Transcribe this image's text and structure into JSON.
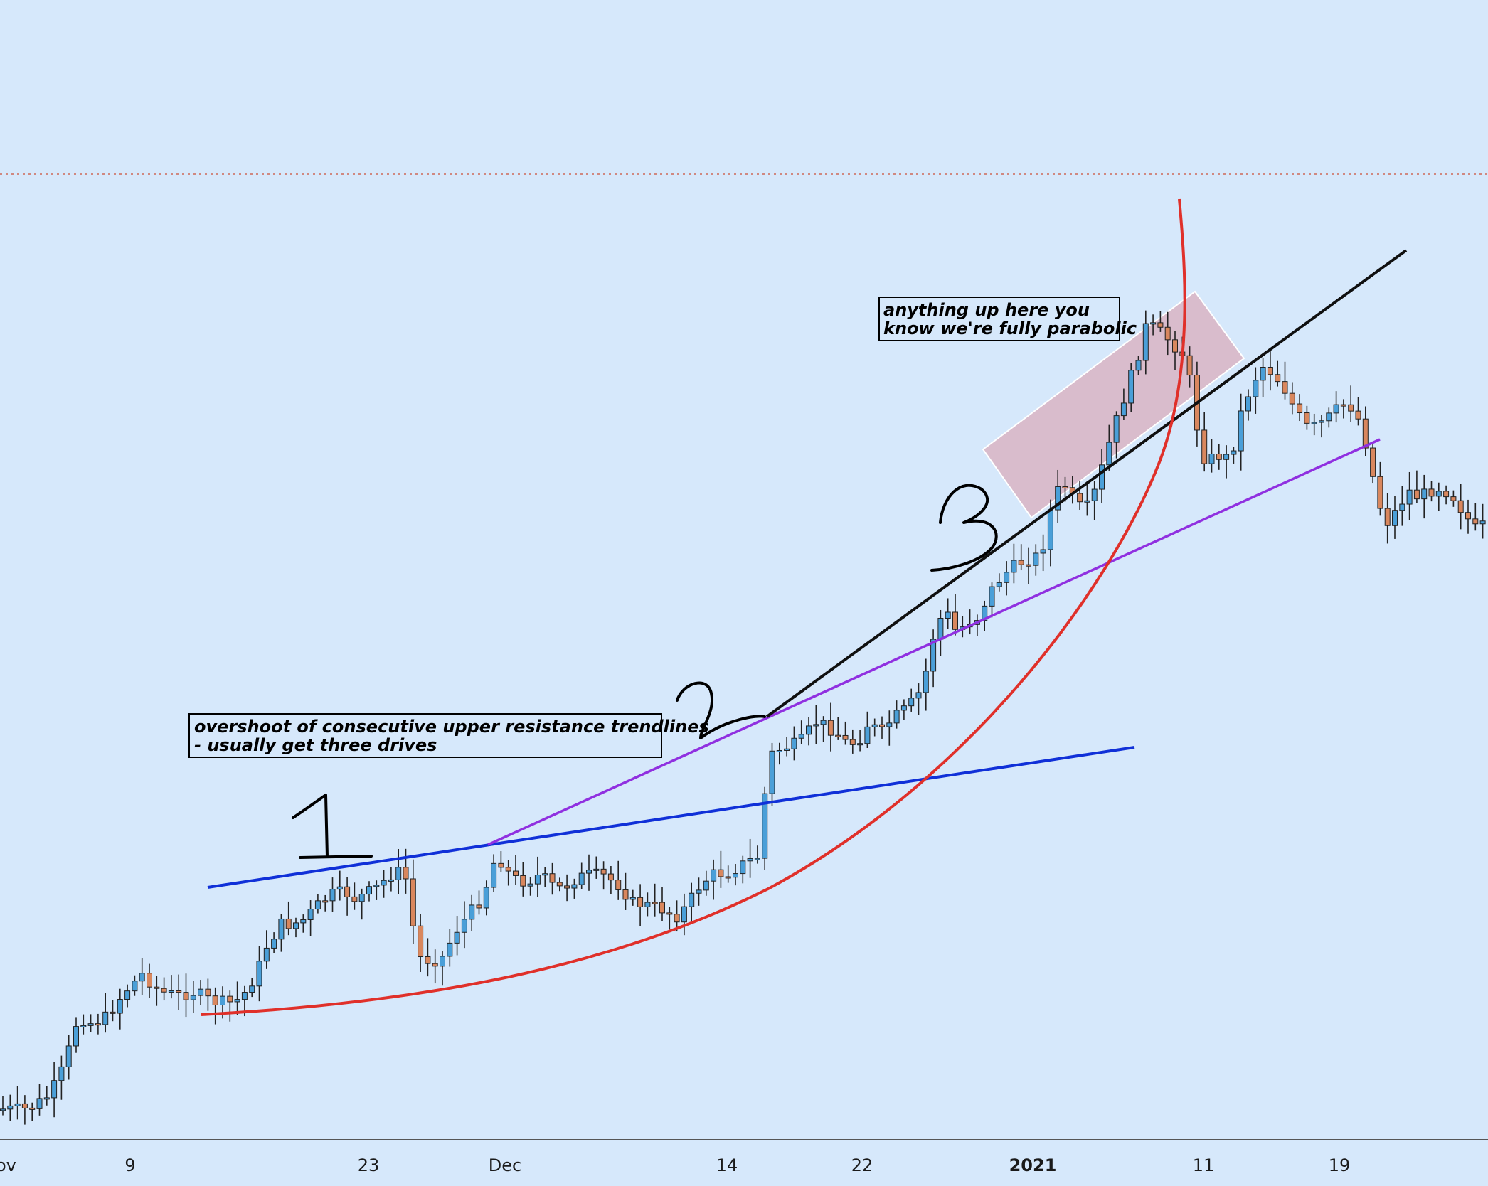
{
  "colors": {
    "background": "#d6e8fb",
    "bull": "#4a9fd8",
    "bear": "#d9875e",
    "wick": "#222222",
    "blue_trendline": "#1030d8",
    "purple_trendline": "#9030e0",
    "black_trendline": "#101010",
    "red_curve": "#e0302a",
    "zone_fill": "#d9b4c3",
    "dotted_line": "#d08880"
  },
  "annotations": {
    "note_1_line_1": "overshoot of consecutive upper resistance trendlines",
    "note_1_line_2": "- usually get three drives",
    "note_2_line_1": "anything up here you",
    "note_2_line_2": "know we're fully parabolic",
    "drive_1": "1",
    "drive_2": "2",
    "drive_3": "3"
  },
  "chart_data": {
    "type": "candlestick",
    "title": "",
    "xlabel": "",
    "ylabel": "",
    "x_tick_labels": [
      {
        "label": "ov",
        "bold": false
      },
      {
        "label": "9",
        "bold": false
      },
      {
        "label": "23",
        "bold": false
      },
      {
        "label": "Dec",
        "bold": false
      },
      {
        "label": "14",
        "bold": false
      },
      {
        "label": "22",
        "bold": false
      },
      {
        "label": "2021",
        "bold": true
      },
      {
        "label": "11",
        "bold": false
      },
      {
        "label": "19",
        "bold": false
      }
    ],
    "grid": false,
    "y_axis_visible": false
  }
}
